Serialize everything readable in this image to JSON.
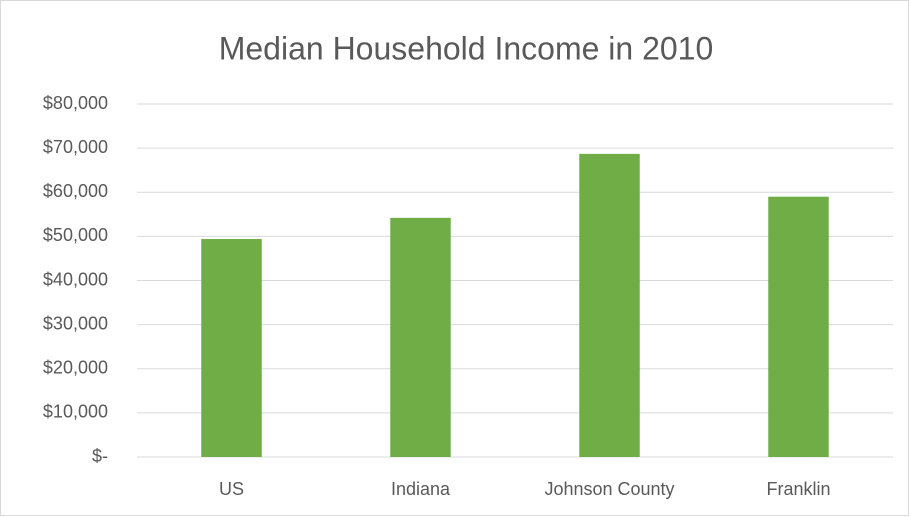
{
  "chart_data": {
    "type": "bar",
    "title": "Median Household Income in 2010",
    "categories": [
      "US",
      "Indiana",
      "Johnson County",
      "Franklin"
    ],
    "values": [
      49400,
      54200,
      68700,
      59000
    ],
    "color": "#70ad47",
    "ylim": [
      0,
      80000
    ],
    "yticks": [
      {
        "value": 0,
        "label": "$-"
      },
      {
        "value": 10000,
        "label": "$10,000"
      },
      {
        "value": 20000,
        "label": "$20,000"
      },
      {
        "value": 30000,
        "label": "$30,000"
      },
      {
        "value": 40000,
        "label": "$40,000"
      },
      {
        "value": 50000,
        "label": "$50,000"
      },
      {
        "value": 60000,
        "label": "$60,000"
      },
      {
        "value": 70000,
        "label": "$70,000"
      },
      {
        "value": 80000,
        "label": "$80,000"
      }
    ],
    "grid": true
  }
}
